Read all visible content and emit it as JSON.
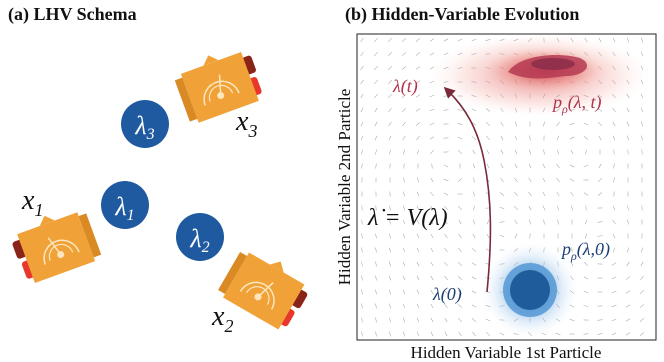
{
  "panel_a": {
    "title": "(a) LHV Schema",
    "nodes": [
      {
        "id": "l3",
        "label": "λ3"
      },
      {
        "id": "l1",
        "label": "λ1"
      },
      {
        "id": "l2",
        "label": "λ2"
      }
    ],
    "measurements": [
      {
        "id": "x3",
        "label": "x3"
      },
      {
        "id": "x1",
        "label": "x1"
      },
      {
        "id": "x2",
        "label": "x2"
      }
    ]
  },
  "panel_b": {
    "title": "(b) Hidden-Variable Evolution",
    "xlabel": "Hidden Variable 1st Particle",
    "ylabel": "Hidden Variable 2nd Particle",
    "labels": {
      "lambda_t": "λ(t)",
      "lambda_0": "λ(0)",
      "rho_t": "pρ(λ, t)",
      "rho_0": "pρ(λ,0)",
      "ode": "λ̇ = V(λ)"
    }
  },
  "colors": {
    "node_blue": "#1f5aa0",
    "device_orange": "#f0a238",
    "device_dark_orange": "#d98a24",
    "red_tab": "#e8372c",
    "dark_red_tab": "#8a2318",
    "heat_red": "#d6404a",
    "heat_blue": "#3a85c8",
    "trajectory": "#7a2a3a"
  }
}
